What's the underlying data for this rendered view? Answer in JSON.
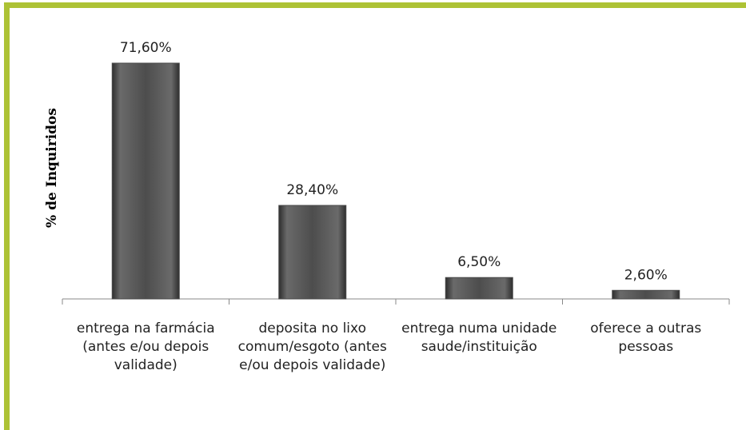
{
  "chart_data": {
    "type": "bar",
    "y_label": "% de Inquiridos",
    "categories": [
      "entrega na farmácia (antes e/ou depois validade)",
      "deposita no lixo comum/esgoto (antes e/ou depois validade)",
      "entrega numa unidade saude/instituição",
      "oferece a outras pessoas"
    ],
    "values": [
      71.6,
      28.4,
      6.5,
      2.6
    ],
    "value_labels": [
      "71,60%",
      "28,40%",
      "6,50%",
      "2,60%"
    ],
    "color": "#4a4a4a"
  }
}
